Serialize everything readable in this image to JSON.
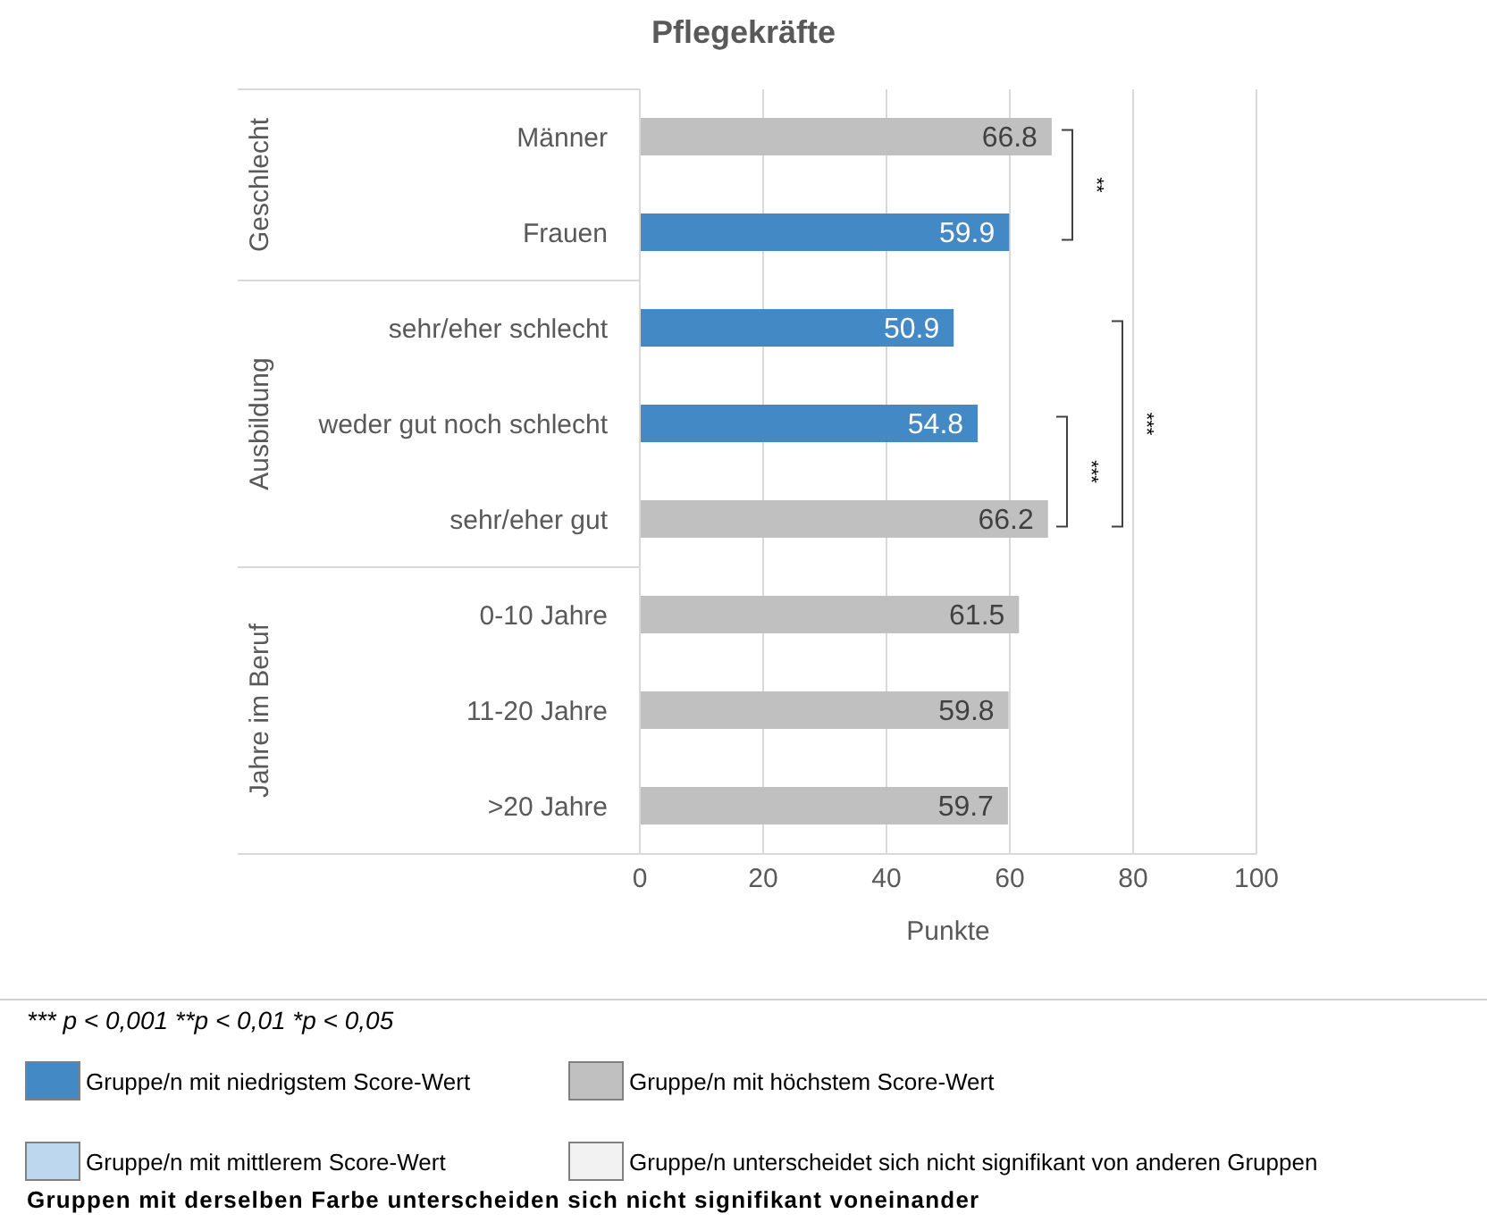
{
  "chart_data": {
    "type": "bar",
    "orientation": "horizontal",
    "stacked": true,
    "title": "Pflegekräfte",
    "xlabel": "Punkte",
    "categories": [
      "Männer",
      "Frauen",
      "sehr/eher schlecht",
      "weder gut noch schlecht",
      "sehr/eher gut",
      "0-10 Jahre",
      "11-20 Jahre",
      ">20 Jahre"
    ],
    "series": [
      {
        "name": "Gruppe/n mit niedrigstem Score-Wert",
        "color": "#4389c6",
        "values": [
          null,
          59.9,
          50.9,
          54.8,
          null,
          null,
          null,
          null
        ]
      },
      {
        "name": "Gruppe/n mit höchstem Score-Wert",
        "color": "#c0c0c0",
        "values": [
          66.8,
          null,
          null,
          null,
          66.2,
          61.5,
          59.8,
          59.7
        ]
      },
      {
        "name": "Gruppe/n mit mittlerem Score-Wert",
        "color": "#bdd7ee",
        "values": [
          null,
          null,
          null,
          null,
          null,
          null,
          null,
          null
        ]
      },
      {
        "name": "Gruppe/n unterscheidet sich nicht signifikant von anderen Gruppen",
        "color": "#f2f2f2",
        "values": [
          null,
          null,
          null,
          null,
          null,
          null,
          null,
          null
        ]
      }
    ],
    "xlim": [
      0,
      100
    ],
    "xticks": [
      0,
      20,
      40,
      60,
      80,
      100
    ],
    "grid": "x",
    "data_labels": true,
    "legend": "bottom",
    "annotations": [
      "Geschlecht",
      "Ausbildung",
      "Jahre im Beruf",
      "**",
      "***",
      "***",
      "*** p < 0,001  **p < 0,01  *p < 0,05",
      "Gruppen mit derselben Farbe unterscheiden sich nicht signifikant voneinander"
    ]
  }
}
